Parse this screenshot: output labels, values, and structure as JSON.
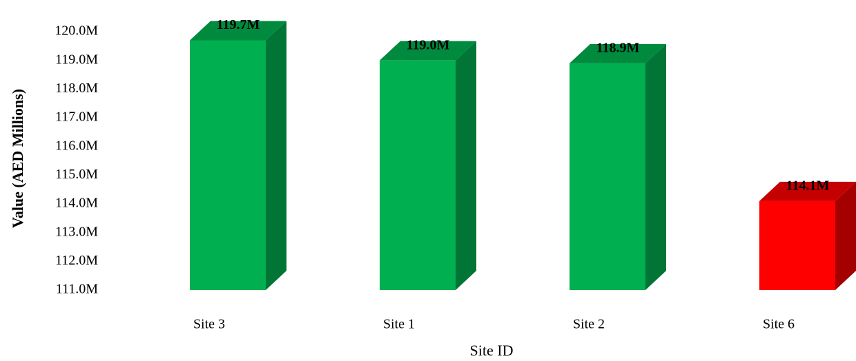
{
  "chart_data": {
    "type": "bar",
    "categories": [
      "Site 3",
      "Site 1",
      "Site 2",
      "Site 6"
    ],
    "values": [
      119.7,
      119.0,
      118.9,
      114.1
    ],
    "data_labels": [
      "119.7M",
      "119.0M",
      "118.9M",
      "114.1M"
    ],
    "title": "",
    "xlabel": "Site ID",
    "ylabel": "Value (AED Millions)",
    "ylim": [
      111.0,
      120.0
    ],
    "yticks": [
      111.0,
      112.0,
      113.0,
      114.0,
      115.0,
      116.0,
      117.0,
      118.0,
      119.0,
      120.0
    ],
    "ytick_labels": [
      "111.0M",
      "112.0M",
      "113.0M",
      "114.0M",
      "115.0M",
      "116.0M",
      "117.0M",
      "118.0M",
      "119.0M",
      "120.0M"
    ],
    "grid": false,
    "style": "3d-bar",
    "colors": {
      "positive_front": "#00b050",
      "positive_side": "#007535",
      "positive_top": "#008a3e",
      "negative_front": "#ff0000",
      "negative_side": "#a50000",
      "negative_top": "#c40000"
    },
    "bar_color_keys": [
      "positive",
      "positive",
      "positive",
      "negative"
    ]
  }
}
